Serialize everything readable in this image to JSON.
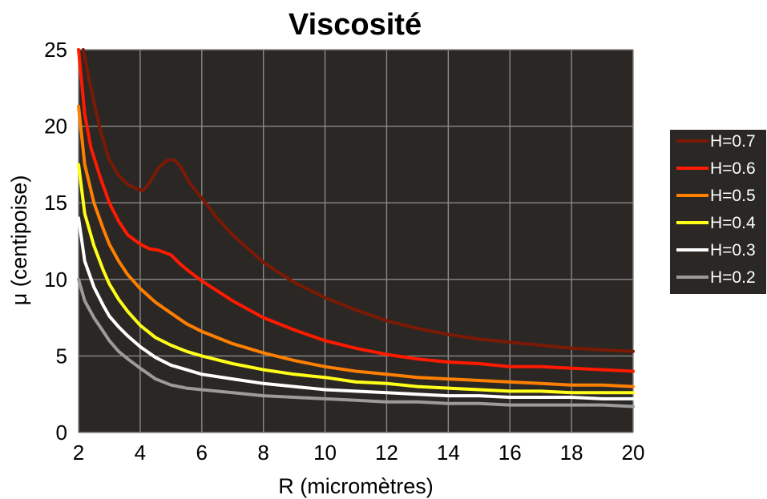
{
  "chart_data": {
    "type": "line",
    "title": "Viscosité",
    "xlabel": "R (micromètres)",
    "ylabel": "μ (centipoise)",
    "xlim": [
      2,
      20
    ],
    "ylim": [
      0,
      25
    ],
    "xticks": [
      2,
      4,
      6,
      8,
      10,
      12,
      14,
      16,
      18,
      20
    ],
    "yticks": [
      0,
      5,
      10,
      15,
      20,
      25
    ],
    "grid": true,
    "background": "#2b2724",
    "legend_position": "right",
    "series": [
      {
        "name": "H=0.7",
        "color": "#7a1a05",
        "x": [
          2.15,
          2.4,
          2.7,
          3.0,
          3.3,
          3.6,
          3.9,
          4.1,
          4.3,
          4.6,
          4.9,
          5.1,
          5.3,
          5.6,
          6.0,
          6.5,
          7.0,
          8.0,
          9.0,
          10.0,
          11.0,
          12.0,
          13.0,
          14.0,
          15.0,
          16.0,
          17.0,
          18.0,
          19.0,
          20.0
        ],
        "y": [
          25,
          22.5,
          19.8,
          17.8,
          16.8,
          16.2,
          15.9,
          15.8,
          16.3,
          17.3,
          17.8,
          17.8,
          17.4,
          16.3,
          15.3,
          14.0,
          12.9,
          11.1,
          9.8,
          8.8,
          8.0,
          7.3,
          6.8,
          6.4,
          6.1,
          5.9,
          5.7,
          5.5,
          5.4,
          5.3
        ]
      },
      {
        "name": "H=0.6",
        "color": "#ff1a00",
        "x": [
          2.0,
          2.2,
          2.4,
          2.7,
          3.0,
          3.3,
          3.6,
          4.0,
          4.3,
          4.6,
          5.0,
          5.3,
          5.6,
          6.0,
          7.0,
          8.0,
          9.0,
          10.0,
          11.0,
          12.0,
          13.0,
          14.0,
          15.0,
          16.0,
          17.0,
          18.0,
          19.0,
          20.0
        ],
        "y": [
          25,
          20.8,
          18.6,
          16.7,
          15.0,
          13.8,
          12.9,
          12.3,
          12.0,
          11.9,
          11.6,
          11.0,
          10.5,
          9.9,
          8.6,
          7.5,
          6.7,
          6.0,
          5.5,
          5.1,
          4.8,
          4.6,
          4.5,
          4.3,
          4.3,
          4.2,
          4.1,
          4.0
        ]
      },
      {
        "name": "H=0.5",
        "color": "#ff7f00",
        "x": [
          2.0,
          2.2,
          2.5,
          2.8,
          3.0,
          3.3,
          3.6,
          4.0,
          4.5,
          5.0,
          5.5,
          6.0,
          7.0,
          8.0,
          9.0,
          10.0,
          11.0,
          12.0,
          13.0,
          14.0,
          15.0,
          16.0,
          17.0,
          18.0,
          19.0,
          20.0
        ],
        "y": [
          21.3,
          17.5,
          15.0,
          13.3,
          12.3,
          11.2,
          10.3,
          9.4,
          8.5,
          7.8,
          7.1,
          6.6,
          5.8,
          5.2,
          4.7,
          4.3,
          4.0,
          3.8,
          3.6,
          3.5,
          3.4,
          3.3,
          3.2,
          3.1,
          3.1,
          3.0
        ]
      },
      {
        "name": "H=0.4",
        "color": "#ffff1a",
        "x": [
          2.0,
          2.2,
          2.5,
          2.8,
          3.0,
          3.3,
          3.6,
          4.0,
          4.5,
          5.0,
          5.5,
          6.0,
          7.0,
          8.0,
          9.0,
          10.0,
          11.0,
          12.0,
          13.0,
          14.0,
          15.0,
          16.0,
          17.0,
          18.0,
          19.0,
          20.0
        ],
        "y": [
          17.5,
          14.3,
          12.2,
          10.6,
          9.7,
          8.7,
          7.9,
          7.0,
          6.2,
          5.7,
          5.3,
          5.0,
          4.5,
          4.1,
          3.8,
          3.6,
          3.3,
          3.2,
          3.0,
          2.9,
          2.8,
          2.7,
          2.7,
          2.6,
          2.6,
          2.6
        ]
      },
      {
        "name": "H=0.3",
        "color": "#ffffff",
        "x": [
          2.0,
          2.2,
          2.5,
          2.8,
          3.0,
          3.3,
          3.6,
          4.0,
          4.5,
          5.0,
          5.5,
          6.0,
          7.0,
          8.0,
          9.0,
          10.0,
          11.0,
          12.0,
          13.0,
          14.0,
          15.0,
          16.0,
          17.0,
          18.0,
          19.0,
          20.0
        ],
        "y": [
          14.0,
          11.2,
          9.5,
          8.3,
          7.6,
          6.9,
          6.3,
          5.6,
          4.9,
          4.4,
          4.1,
          3.8,
          3.5,
          3.2,
          3.0,
          2.8,
          2.7,
          2.6,
          2.5,
          2.4,
          2.4,
          2.3,
          2.3,
          2.3,
          2.2,
          2.2
        ]
      },
      {
        "name": "H=0.2",
        "color": "#9b9b9b",
        "x": [
          2.0,
          2.2,
          2.5,
          2.8,
          3.0,
          3.3,
          3.6,
          4.0,
          4.5,
          5.0,
          5.5,
          6.0,
          7.0,
          8.0,
          9.0,
          10.0,
          11.0,
          12.0,
          13.0,
          14.0,
          15.0,
          16.0,
          17.0,
          18.0,
          19.0,
          20.0
        ],
        "y": [
          10.0,
          8.6,
          7.5,
          6.6,
          6.0,
          5.3,
          4.8,
          4.2,
          3.5,
          3.1,
          2.9,
          2.8,
          2.6,
          2.4,
          2.3,
          2.2,
          2.1,
          2.0,
          2.0,
          1.9,
          1.9,
          1.8,
          1.8,
          1.8,
          1.8,
          1.7
        ]
      }
    ]
  }
}
